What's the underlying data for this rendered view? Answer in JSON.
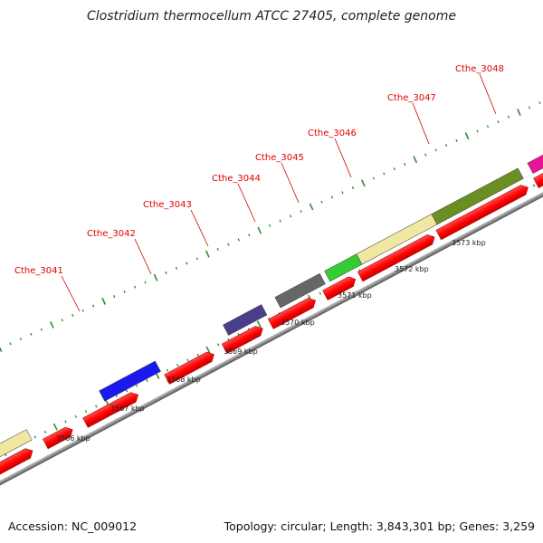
{
  "title": "Clostridium thermocellum ATCC 27405, complete genome",
  "footer": {
    "accession": "Accession: NC_009012",
    "stats": "Topology: circular; Length: 3,843,301 bp; Genes: 3,259"
  },
  "colors": {
    "cds": "#ff0000",
    "backbone": "#909090",
    "tick": "#2f8a2f",
    "label": "#e00000"
  },
  "scale_labels": [
    "3566 kbp",
    "3567 kbp",
    "3568 kbp",
    "3569 kbp",
    "3570 kbp",
    "3571 kbp",
    "3572 kbp",
    "3573 kbp"
  ],
  "gene_labels": [
    "Cthe_3041",
    "Cthe_3042",
    "Cthe_3043",
    "Cthe_3044",
    "Cthe_3045",
    "Cthe_3046",
    "Cthe_3047",
    "Cthe_3048"
  ],
  "cog_blocks": [
    {
      "color": "#f0e8a0"
    },
    {
      "color": "#1a1af0"
    },
    {
      "color": "#4a3e8c"
    },
    {
      "color": "#666666"
    },
    {
      "color": "#33cc33"
    },
    {
      "color": "#f0e8a0"
    },
    {
      "color": "#6b8e23"
    },
    {
      "color": "#e8159a"
    }
  ]
}
